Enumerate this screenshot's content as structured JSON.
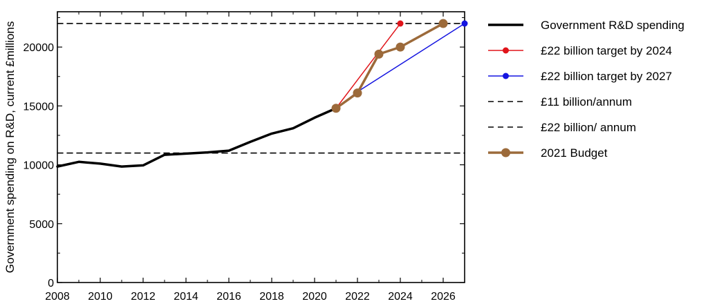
{
  "chart_data": {
    "type": "line",
    "ylabel": "Government spending on R&D, current £millions",
    "xlim": [
      2008,
      2027
    ],
    "ylim": [
      0,
      23000
    ],
    "xticks": [
      2008,
      2010,
      2012,
      2014,
      2016,
      2018,
      2020,
      2022,
      2024,
      2026
    ],
    "xtick_labels": [
      "2008",
      "2010",
      "2012",
      "2014",
      "2016",
      "2018",
      "2020",
      "2022",
      "2024",
      "2026"
    ],
    "yticks": [
      0,
      5000,
      10000,
      15000,
      20000
    ],
    "ytick_labels": [
      "0",
      "5000",
      "10000",
      "15000",
      "20000"
    ],
    "grid": false,
    "legend_position": "right",
    "series": [
      {
        "name": "Government R&D spending",
        "color": "#000000",
        "style": "solid",
        "marker": "none",
        "points": [
          [
            2008,
            9850
          ],
          [
            2009,
            10250
          ],
          [
            2010,
            10100
          ],
          [
            2011,
            9850
          ],
          [
            2012,
            9950
          ],
          [
            2013,
            10850
          ],
          [
            2014,
            10950
          ],
          [
            2015,
            11050
          ],
          [
            2016,
            11200
          ],
          [
            2017,
            11950
          ],
          [
            2018,
            12650
          ],
          [
            2019,
            13100
          ],
          [
            2020,
            14000
          ],
          [
            2021,
            14800
          ]
        ]
      },
      {
        "name": "£22 billion target by 2024",
        "color": "#e0141a",
        "style": "solid",
        "marker": "dot",
        "points": [
          [
            2021,
            14800
          ],
          [
            2022,
            17200
          ],
          [
            2023,
            19600
          ],
          [
            2024,
            22000
          ]
        ]
      },
      {
        "name": "£22 billion target by 2027",
        "color": "#1414e0",
        "style": "solid",
        "marker": "dot",
        "points": [
          [
            2021,
            14800
          ],
          [
            2022,
            16200
          ],
          [
            2027,
            22000
          ]
        ]
      },
      {
        "name": "£11 billion/annum",
        "color": "#000000",
        "style": "dashed",
        "marker": "none",
        "points": [
          [
            2008,
            11000
          ],
          [
            2027,
            11000
          ]
        ]
      },
      {
        "name": "£22 billion/ annum",
        "color": "#000000",
        "style": "dashed",
        "marker": "none",
        "points": [
          [
            2008,
            22000
          ],
          [
            2027,
            22000
          ]
        ]
      },
      {
        "name": "2021 Budget",
        "color": "#9c6a3a",
        "style": "solid",
        "marker": "big-dot",
        "points": [
          [
            2021,
            14800
          ],
          [
            2022,
            16100
          ],
          [
            2023,
            19400
          ],
          [
            2024,
            20000
          ],
          [
            2026,
            22000
          ]
        ]
      }
    ],
    "legend": [
      {
        "label": "Government R&D spending",
        "series": 0
      },
      {
        "label": "£22 billion target by 2024",
        "series": 1
      },
      {
        "label": "£22 billion target by 2027",
        "series": 2
      },
      {
        "label": "£11 billion/annum",
        "series": 3
      },
      {
        "label": "£22 billion/ annum",
        "series": 4
      },
      {
        "label": "2021 Budget",
        "series": 5
      }
    ]
  }
}
